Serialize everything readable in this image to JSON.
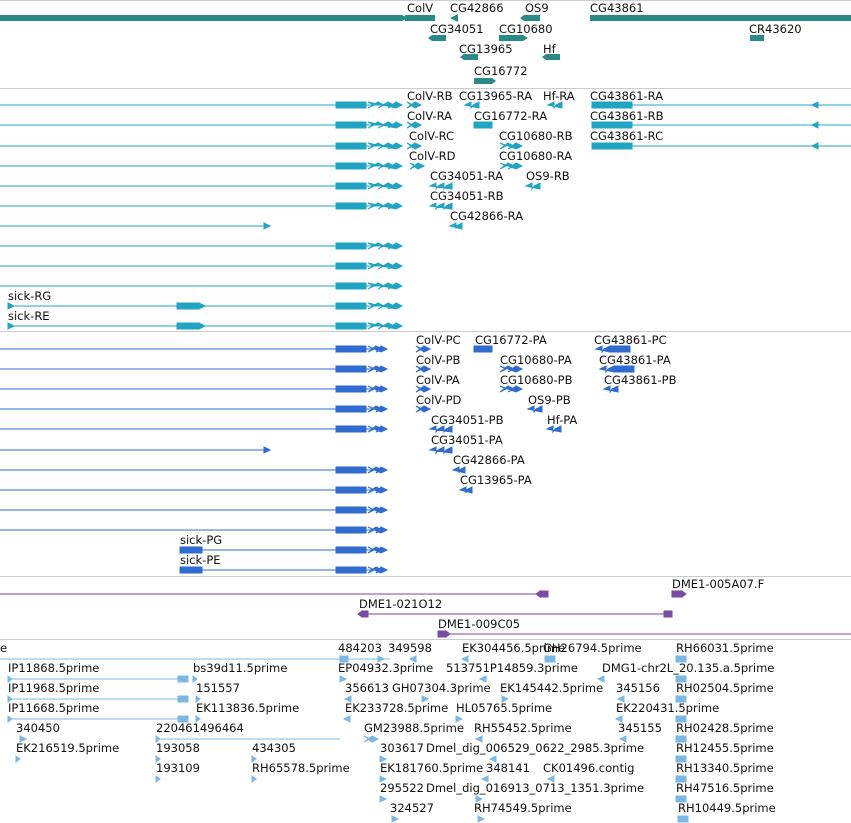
{
  "colors": {
    "gene": "#2a8a88",
    "transcript": "#20a4c4",
    "protein": "#2f6bd1",
    "cdna": "#7a4aa6",
    "est": "#7cb8e6",
    "divider": "#cccccc"
  },
  "tracks": {
    "genes": {
      "labels": [
        "ColV",
        "CG42866",
        "OS9",
        "CG43861",
        "CG34051",
        "CG10680",
        "CR43620",
        "CG13965",
        "Hf",
        "CG16772"
      ]
    },
    "transcripts": {
      "labels": [
        "ColV-RB",
        "CG13965-RA",
        "Hf-RA",
        "CG43861-RA",
        "ColV-RA",
        "CG16772-RA",
        "CG43861-RB",
        "ColV-RC",
        "CG10680-RB",
        "CG43861-RC",
        "ColV-RD",
        "CG10680-RA",
        "CG34051-RA",
        "OS9-RB",
        "CG34051-RB",
        "CG42866-RA",
        "sick-RG",
        "sick-RE"
      ]
    },
    "proteins": {
      "labels": [
        "ColV-PC",
        "CG16772-PA",
        "CG43861-PC",
        "ColV-PB",
        "CG10680-PA",
        "CG43861-PA",
        "ColV-PA",
        "CG10680-PB",
        "CG43861-PB",
        "ColV-PD",
        "OS9-PB",
        "CG34051-PB",
        "Hf-PA",
        "CG34051-PA",
        "CG42866-PA",
        "CG13965-PA",
        "sick-PG",
        "sick-PE"
      ]
    },
    "cdna": {
      "labels": [
        "DME1-005A07.F",
        "DME1-021O12",
        "DME1-009C05"
      ]
    },
    "est": {
      "labels": [
        "e",
        "484203",
        "349598",
        "EK304456.5prime",
        "GH26794.5prime",
        "RH66031.5prime",
        "IP11868.5prime",
        "bs39d11.5prime",
        "EP04932.3prime",
        "513751P14859.3prime",
        "DMG1-chr2L_20.135.a.5prime",
        "IP11968.5prime",
        "151557",
        "356613",
        "GH07304.3prime",
        "EK145442.5prime",
        "345156",
        "RH02504.5prime",
        "IP11668.5prime",
        "EK113836.5prime",
        "EK233728.5prime",
        "HL05765.5prime",
        "EK220431.5prime",
        "340450",
        "220461496464",
        "GM23988.5prime",
        "RH55452.5prime",
        "345155",
        "RH02428.5prime",
        "EK216519.5prime",
        "193058",
        "434305",
        "303617",
        "Dmel_dig_006529_0622_2985.3prime",
        "RH12455.5prime",
        "193109",
        "RH65578.5prime",
        "EK181760.5prime",
        "348141",
        "CK01496.contig",
        "RH13340.5prime",
        "295522",
        "Dmel_dig_016913_0713_1351.3prime",
        "RH47516.5prime",
        "324527",
        "RH74549.5prime",
        "RH10449.5prime"
      ]
    }
  }
}
